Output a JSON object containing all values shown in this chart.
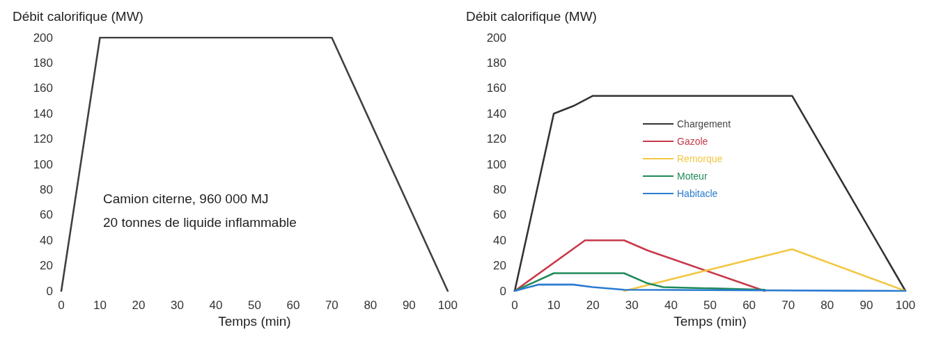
{
  "chart_data": [
    {
      "type": "line",
      "ylabel": "Débit calorifique (MW)",
      "xlabel": "Temps (min)",
      "annotations": [
        "Camion citerne, 960 000 MJ",
        "20 tonnes de liquide inflammable"
      ],
      "xlim": [
        0,
        100
      ],
      "xticks": [
        0,
        10,
        20,
        30,
        40,
        50,
        60,
        70,
        80,
        90,
        100
      ],
      "ylim": [
        0,
        200
      ],
      "yticks": [
        0,
        20,
        40,
        60,
        80,
        100,
        120,
        140,
        160,
        180,
        200
      ],
      "grid": false,
      "legend": false,
      "marker": "none",
      "line_style": "solid",
      "series": [
        {
          "color": "#404040",
          "x": [
            0,
            10,
            70,
            100
          ],
          "values": [
            0,
            200,
            200,
            0
          ]
        }
      ]
    },
    {
      "type": "line",
      "ylabel": "Débit calorifique (MW)",
      "xlabel": "Temps (min)",
      "xlim": [
        0,
        100
      ],
      "xticks": [
        0,
        10,
        20,
        30,
        40,
        50,
        60,
        70,
        80,
        90,
        100
      ],
      "ylim": [
        0,
        200
      ],
      "yticks": [
        0,
        20,
        40,
        60,
        80,
        100,
        120,
        140,
        160,
        180,
        200
      ],
      "grid": false,
      "legend": "top",
      "marker": "none",
      "line_style": "solid",
      "series": [
        {
          "name": "Chargement",
          "color": "#333333",
          "x": [
            0,
            10,
            15,
            20,
            71,
            100
          ],
          "values": [
            0,
            140,
            146,
            154,
            154,
            0
          ]
        },
        {
          "name": "Gazole",
          "color": "#c8394b",
          "x": [
            0,
            18,
            28,
            34,
            64
          ],
          "values": [
            0,
            40,
            40,
            32,
            0
          ]
        },
        {
          "name": "Remorque",
          "color": "#f2c744",
          "x": [
            28,
            71,
            100
          ],
          "values": [
            0,
            33,
            0
          ]
        },
        {
          "name": "Moteur",
          "color": "#1f8a5a",
          "x": [
            0,
            10,
            28,
            34,
            38,
            64
          ],
          "values": [
            0,
            14,
            14,
            6,
            3,
            1
          ]
        },
        {
          "name": "Habitacle",
          "color": "#2a7bd0",
          "x": [
            0,
            6,
            15,
            20,
            28,
            100
          ],
          "values": [
            0,
            5,
            5,
            3,
            1,
            0
          ]
        }
      ]
    }
  ]
}
